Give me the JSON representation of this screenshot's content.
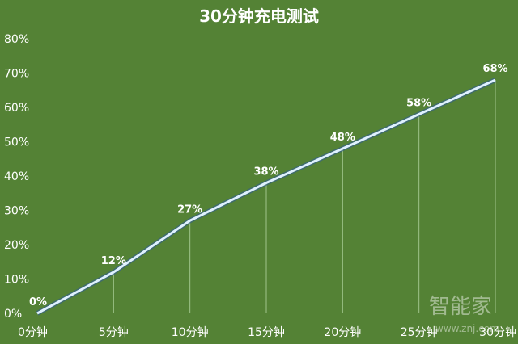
{
  "chart_data": {
    "type": "line",
    "title": "30分钟充电测试",
    "categories": [
      "0分钟",
      "5分钟",
      "10分钟",
      "15分钟",
      "20分钟",
      "25分钟",
      "30分钟"
    ],
    "values": [
      0,
      12,
      27,
      38,
      48,
      58,
      68
    ],
    "data_labels": [
      "0%",
      "12%",
      "27%",
      "38%",
      "48%",
      "58%",
      "68%"
    ],
    "y_ticks": [
      "0%",
      "10%",
      "20%",
      "30%",
      "40%",
      "50%",
      "60%",
      "70%",
      "80%"
    ],
    "ylim": [
      0,
      80
    ],
    "grid": false,
    "colors": {
      "background": "#548235",
      "line": "#dff1ff",
      "drop_lines": "#9fc48a",
      "text": "#ffffff"
    }
  },
  "watermark": {
    "text": "智能家",
    "url": "www.znj.com"
  }
}
